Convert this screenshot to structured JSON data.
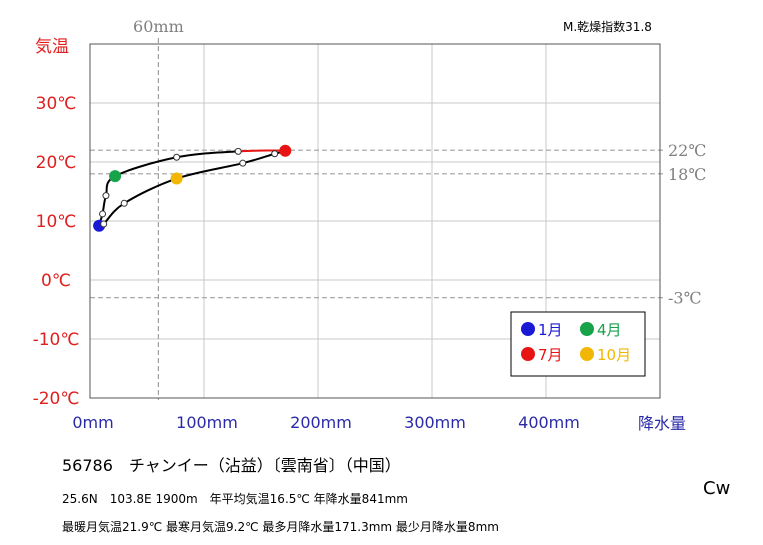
{
  "chart_data": {
    "type": "line",
    "ylabel": "気温",
    "xlabel": "降水量",
    "xlim": [
      0,
      500
    ],
    "ylim": [
      -20,
      40
    ],
    "x_ticks": [
      {
        "value": 0,
        "label": "0mm"
      },
      {
        "value": 100,
        "label": "100mm"
      },
      {
        "value": 200,
        "label": "200mm"
      },
      {
        "value": 300,
        "label": "300mm"
      },
      {
        "value": 400,
        "label": "400mm"
      }
    ],
    "y_ticks": [
      {
        "value": 30,
        "label": "30℃"
      },
      {
        "value": 20,
        "label": "20℃"
      },
      {
        "value": 10,
        "label": "10℃"
      },
      {
        "value": 0,
        "label": "0℃"
      },
      {
        "value": -10,
        "label": "-10℃"
      },
      {
        "value": -20,
        "label": "-20℃"
      }
    ],
    "reference_lines": [
      {
        "axis": "x",
        "value": 60,
        "label": "60mm"
      },
      {
        "axis": "y",
        "value": 22,
        "label": "22℃"
      },
      {
        "axis": "y",
        "value": 18,
        "label": "18℃"
      },
      {
        "axis": "y",
        "value": -3,
        "label": "-3℃"
      }
    ],
    "aridity_index": "M.乾燥指数31.8",
    "monthly_points": [
      {
        "month": 1,
        "precip": 8,
        "temp": 9.2
      },
      {
        "month": 2,
        "precip": 11,
        "temp": 11.2
      },
      {
        "month": 3,
        "precip": 14,
        "temp": 14.3
      },
      {
        "month": 4,
        "precip": 22,
        "temp": 17.6
      },
      {
        "month": 5,
        "precip": 76,
        "temp": 20.8
      },
      {
        "month": 6,
        "precip": 130,
        "temp": 21.8
      },
      {
        "month": 7,
        "precip": 171.3,
        "temp": 21.9
      },
      {
        "month": 8,
        "precip": 162,
        "temp": 21.4
      },
      {
        "month": 9,
        "precip": 134,
        "temp": 19.8
      },
      {
        "month": 10,
        "precip": 76,
        "temp": 17.2
      },
      {
        "month": 11,
        "precip": 30,
        "temp": 13
      },
      {
        "month": 12,
        "precip": 12,
        "temp": 9.5
      }
    ],
    "highlight_months": [
      {
        "month": 1,
        "label": "1月",
        "color": "#1a1ad6"
      },
      {
        "month": 4,
        "label": "4月",
        "color": "#17a34a"
      },
      {
        "month": 7,
        "label": "7月",
        "color": "#e81414"
      },
      {
        "month": 10,
        "label": "10月",
        "color": "#f2b705"
      }
    ],
    "legend_position": "bottom-right"
  },
  "station": {
    "title": "56786　チャンイー（沾益）〔雲南省〕（中国）",
    "climate_class": "Cw",
    "line1": "25.6N　103.8E 1900m　年平均気温16.5℃ 年降水量841mm",
    "line2": "最暖月気温21.9℃ 最寒月気温9.2℃ 最多月降水量171.3mm 最少月降水量8mm"
  }
}
